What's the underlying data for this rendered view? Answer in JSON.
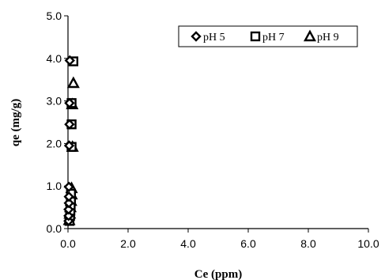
{
  "chart_data": {
    "type": "scatter",
    "xlabel": "Ce (ppm)",
    "ylabel": "qe (mg/g)",
    "xlim": [
      0,
      10
    ],
    "ylim": [
      0,
      5
    ],
    "x_ticks": [
      "0.0",
      "2.0",
      "4.0",
      "6.0",
      "8.0",
      "10.0"
    ],
    "y_ticks": [
      "0.0",
      "1.0",
      "2.0",
      "3.0",
      "4.0",
      "5.0"
    ],
    "grid": false,
    "legend_position": "top-right",
    "series": [
      {
        "name": "pH 5",
        "marker": "diamond",
        "points": [
          {
            "x": 0.02,
            "y": 0.18
          },
          {
            "x": 0.02,
            "y": 0.3
          },
          {
            "x": 0.02,
            "y": 0.45
          },
          {
            "x": 0.03,
            "y": 0.6
          },
          {
            "x": 0.03,
            "y": 0.75
          },
          {
            "x": 0.03,
            "y": 0.98
          },
          {
            "x": 0.04,
            "y": 1.95
          },
          {
            "x": 0.05,
            "y": 2.45
          },
          {
            "x": 0.05,
            "y": 2.95
          },
          {
            "x": 0.06,
            "y": 3.95
          }
        ]
      },
      {
        "name": "pH 7",
        "marker": "square",
        "points": [
          {
            "x": 0.05,
            "y": 0.18
          },
          {
            "x": 0.07,
            "y": 0.3
          },
          {
            "x": 0.08,
            "y": 0.42
          },
          {
            "x": 0.09,
            "y": 0.55
          },
          {
            "x": 0.1,
            "y": 0.68
          },
          {
            "x": 0.1,
            "y": 0.82
          },
          {
            "x": 0.12,
            "y": 1.92
          },
          {
            "x": 0.12,
            "y": 2.45
          },
          {
            "x": 0.12,
            "y": 2.95
          },
          {
            "x": 0.18,
            "y": 3.93
          }
        ]
      },
      {
        "name": "pH 9",
        "marker": "triangle",
        "points": [
          {
            "x": 0.04,
            "y": 0.2
          },
          {
            "x": 0.06,
            "y": 0.35
          },
          {
            "x": 0.08,
            "y": 0.5
          },
          {
            "x": 0.1,
            "y": 0.65
          },
          {
            "x": 0.12,
            "y": 0.8
          },
          {
            "x": 0.12,
            "y": 0.95
          },
          {
            "x": 0.15,
            "y": 1.92
          },
          {
            "x": 0.14,
            "y": 2.92
          },
          {
            "x": 0.18,
            "y": 3.42
          }
        ]
      }
    ]
  }
}
